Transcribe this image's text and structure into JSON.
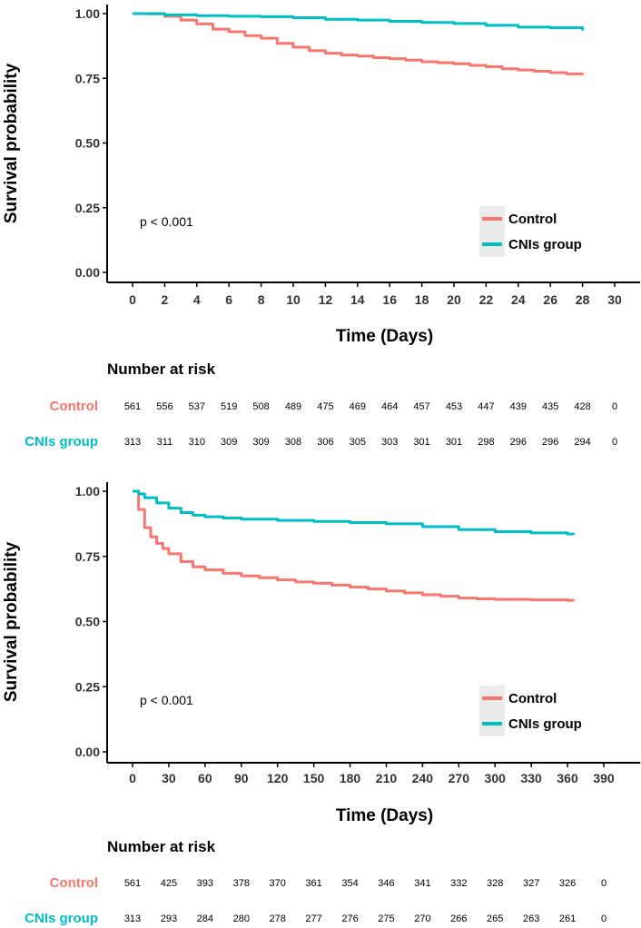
{
  "colors": {
    "control": "#f8766d",
    "cnis": "#00bfc4",
    "legend_bg": "#ebebeb"
  },
  "chart_data": [
    {
      "type": "line",
      "title": "",
      "xlabel": "Time (Days)",
      "ylabel": "Survival probability",
      "xlim": [
        0,
        30
      ],
      "ylim": [
        0,
        1
      ],
      "xticks": [
        0,
        2,
        4,
        6,
        8,
        10,
        12,
        14,
        16,
        18,
        20,
        22,
        24,
        26,
        28,
        30
      ],
      "yticks": [
        0,
        0.25,
        0.5,
        0.75,
        1.0
      ],
      "ytick_labels": [
        "0.00",
        "0.25",
        "0.50",
        "0.75",
        "1.00"
      ],
      "annotation": "p < 0.001",
      "legend": [
        "Control",
        "CNIs group"
      ],
      "series": [
        {
          "name": "Control",
          "color": "#f8766d",
          "x": [
            0,
            1,
            2,
            3,
            4,
            5,
            6,
            7,
            8,
            9,
            10,
            11,
            12,
            13,
            14,
            15,
            16,
            17,
            18,
            19,
            20,
            21,
            22,
            23,
            24,
            25,
            26,
            27,
            28
          ],
          "y": [
            1.0,
            0.999,
            0.99,
            0.975,
            0.96,
            0.94,
            0.93,
            0.915,
            0.905,
            0.885,
            0.87,
            0.857,
            0.847,
            0.84,
            0.836,
            0.83,
            0.826,
            0.82,
            0.814,
            0.81,
            0.806,
            0.8,
            0.795,
            0.787,
            0.782,
            0.777,
            0.772,
            0.767,
            0.763
          ]
        },
        {
          "name": "CNIs group",
          "color": "#00bfc4",
          "x": [
            0,
            2,
            4,
            6,
            8,
            10,
            12,
            14,
            16,
            18,
            20,
            22,
            24,
            26,
            28
          ],
          "y": [
            1.0,
            0.995,
            0.992,
            0.99,
            0.988,
            0.984,
            0.978,
            0.975,
            0.97,
            0.966,
            0.962,
            0.955,
            0.948,
            0.945,
            0.935
          ]
        }
      ],
      "risk_table": {
        "title": "Number at risk",
        "times": [
          0,
          2,
          4,
          6,
          8,
          10,
          12,
          14,
          16,
          18,
          20,
          22,
          24,
          26,
          28,
          30
        ],
        "rows": [
          {
            "name": "Control",
            "values": [
              "561",
              "556",
              "537",
              "519",
              "508",
              "489",
              "475",
              "469",
              "464",
              "457",
              "453",
              "447",
              "439",
              "435",
              "428",
              "0"
            ]
          },
          {
            "name": "CNIs group",
            "values": [
              "313",
              "311",
              "310",
              "309",
              "309",
              "308",
              "306",
              "305",
              "303",
              "301",
              "301",
              "298",
              "296",
              "296",
              "294",
              "0"
            ]
          }
        ]
      }
    },
    {
      "type": "line",
      "title": "",
      "xlabel": "Time (Days)",
      "ylabel": "Survival probability",
      "xlim": [
        0,
        390
      ],
      "ylim": [
        0,
        1
      ],
      "xticks": [
        0,
        30,
        60,
        90,
        120,
        150,
        180,
        210,
        240,
        270,
        300,
        330,
        360,
        390
      ],
      "yticks": [
        0,
        0.25,
        0.5,
        0.75,
        1.0
      ],
      "ytick_labels": [
        "0.00",
        "0.25",
        "0.50",
        "0.75",
        "1.00"
      ],
      "annotation": "p < 0.001",
      "legend": [
        "Control",
        "CNIs group"
      ],
      "series": [
        {
          "name": "Control",
          "color": "#f8766d",
          "x": [
            0,
            5,
            10,
            15,
            20,
            25,
            30,
            40,
            50,
            60,
            75,
            90,
            105,
            120,
            135,
            150,
            165,
            180,
            195,
            210,
            225,
            240,
            255,
            270,
            285,
            300,
            330,
            360,
            365
          ],
          "y": [
            1.0,
            0.93,
            0.86,
            0.825,
            0.8,
            0.78,
            0.76,
            0.73,
            0.71,
            0.698,
            0.685,
            0.675,
            0.668,
            0.66,
            0.652,
            0.647,
            0.64,
            0.632,
            0.625,
            0.617,
            0.61,
            0.603,
            0.597,
            0.59,
            0.587,
            0.585,
            0.583,
            0.581,
            0.58
          ]
        },
        {
          "name": "CNIs group",
          "color": "#00bfc4",
          "x": [
            0,
            5,
            10,
            20,
            30,
            40,
            50,
            60,
            75,
            90,
            120,
            150,
            180,
            210,
            240,
            270,
            300,
            330,
            360,
            365
          ],
          "y": [
            1.0,
            0.99,
            0.975,
            0.955,
            0.935,
            0.918,
            0.908,
            0.902,
            0.897,
            0.893,
            0.888,
            0.884,
            0.88,
            0.875,
            0.864,
            0.853,
            0.845,
            0.84,
            0.836,
            0.834
          ]
        }
      ],
      "risk_table": {
        "title": "Number at risk",
        "times": [
          0,
          30,
          60,
          90,
          120,
          150,
          180,
          210,
          240,
          270,
          300,
          330,
          360,
          390
        ],
        "rows": [
          {
            "name": "Control",
            "values": [
              "561",
              "425",
              "393",
              "378",
              "370",
              "361",
              "354",
              "346",
              "341",
              "332",
              "328",
              "327",
              "326",
              "0"
            ]
          },
          {
            "name": "CNIs group",
            "values": [
              "313",
              "293",
              "284",
              "280",
              "278",
              "277",
              "276",
              "275",
              "270",
              "266",
              "265",
              "263",
              "261",
              "0"
            ]
          }
        ]
      }
    }
  ]
}
